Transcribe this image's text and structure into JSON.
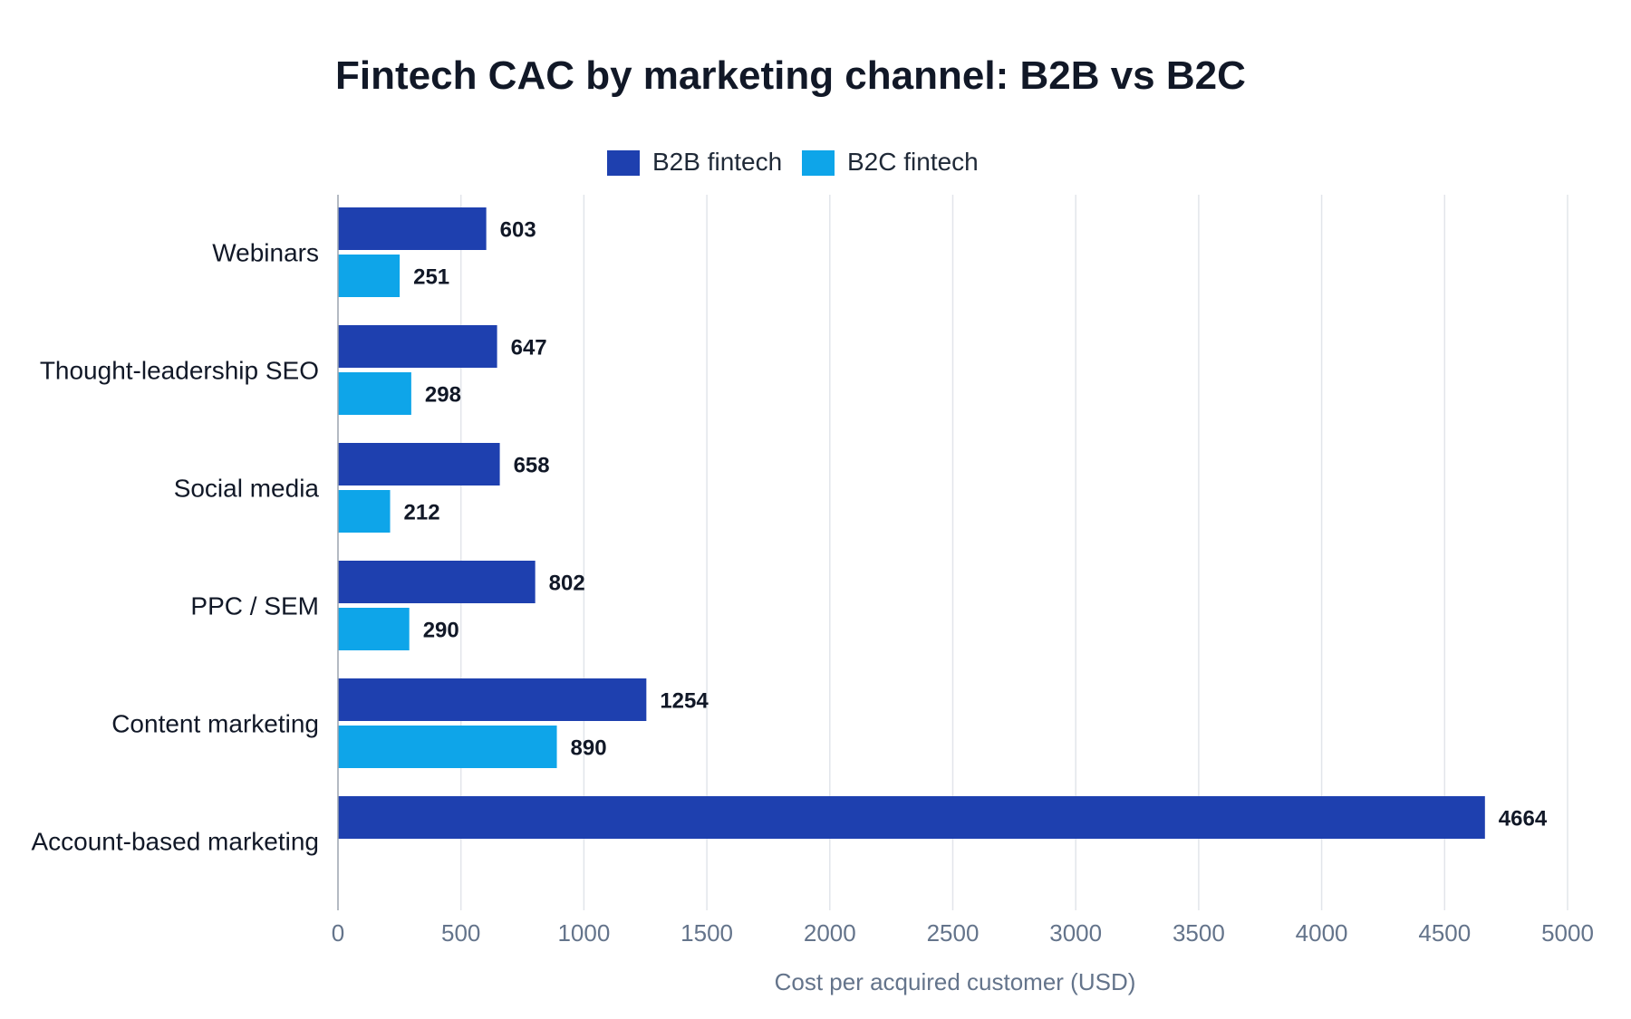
{
  "chart_data": {
    "type": "bar",
    "orientation": "horizontal",
    "title": "Fintech CAC by marketing channel: B2B vs B2C",
    "xlabel": "Cost per acquired customer (USD)",
    "ylabel": "",
    "xlim": [
      0,
      5000
    ],
    "xticks": [
      "0",
      "500",
      "1000",
      "1500",
      "2000",
      "2500",
      "3000",
      "3500",
      "4000",
      "4500",
      "5000"
    ],
    "grid": true,
    "legend_position": "top-center",
    "categories": [
      "Webinars",
      "Thought-leadership SEO",
      "Social media",
      "PPC / SEM",
      "Content marketing",
      "Account-based marketing"
    ],
    "series": [
      {
        "name": "B2B fintech",
        "color": "#1e40af",
        "values": [
          603,
          647,
          658,
          802,
          1254,
          4664
        ],
        "labels": [
          "603",
          "647",
          "658",
          "802",
          "1254",
          "4664"
        ]
      },
      {
        "name": "B2C fintech",
        "color": "#0ea5e9",
        "values": [
          251,
          298,
          212,
          290,
          890,
          null
        ],
        "labels": [
          "251",
          "298",
          "212",
          "290",
          "890",
          ""
        ]
      }
    ]
  }
}
